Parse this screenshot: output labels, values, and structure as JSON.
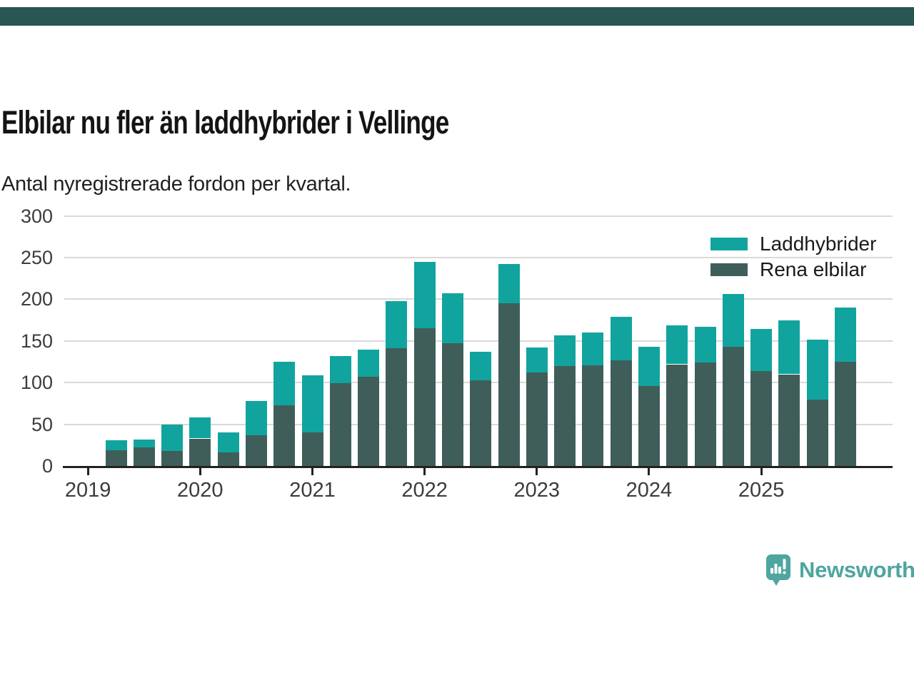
{
  "page": {
    "background": "#FFFFFF",
    "top_bar_color": "#275654"
  },
  "header": {
    "title": "Elbilar nu fler än laddhybrider i Vellinge",
    "subtitle": "Antal nyregistrerade fordon per kvartal."
  },
  "chart_data": {
    "type": "bar",
    "stacked": true,
    "categories": [
      "2019 Q2",
      "2019 Q3",
      "2019 Q4",
      "2020 Q1",
      "2020 Q2",
      "2020 Q3",
      "2020 Q4",
      "2021 Q1",
      "2021 Q2",
      "2021 Q3",
      "2021 Q4",
      "2022 Q1",
      "2022 Q2",
      "2022 Q3",
      "2022 Q4",
      "2023 Q1",
      "2023 Q2",
      "2023 Q3",
      "2023 Q4",
      "2024 Q1",
      "2024 Q2",
      "2024 Q3",
      "2024 Q4",
      "2025 Q1",
      "2025 Q2",
      "2025 Q3",
      "2025 Q4"
    ],
    "series": [
      {
        "name": "Laddhybrider",
        "color": "#11A49E",
        "values": [
          12,
          10,
          32,
          25,
          24,
          41,
          52,
          69,
          33,
          33,
          57,
          80,
          60,
          34,
          47,
          30,
          37,
          39,
          52,
          47,
          47,
          43,
          63,
          50,
          65,
          72,
          65
        ]
      },
      {
        "name": "Rena elbilar",
        "color": "#405E59",
        "values": [
          19,
          22,
          18,
          33,
          16,
          37,
          73,
          40,
          99,
          107,
          141,
          165,
          147,
          103,
          195,
          112,
          120,
          121,
          127,
          96,
          122,
          124,
          143,
          114,
          110,
          80,
          125
        ]
      }
    ],
    "ylabel": "",
    "xlabel": "",
    "ylim": [
      0,
      300
    ],
    "y_ticks": [
      0,
      50,
      100,
      150,
      200,
      250,
      300
    ],
    "x_tick_labels": [
      "2019",
      "2020",
      "2021",
      "2022",
      "2023",
      "2024",
      "2025"
    ],
    "grid": "horizontal",
    "grid_color": "#D9D9D9",
    "axis_color": "#222222",
    "tick_label_color": "#3C3C3C",
    "legend_position": "top-right"
  },
  "footer": {
    "brand": "Newsworthy",
    "brand_color": "#4FA5A0",
    "logo_icon": "bar-chart-speech-bubble-icon"
  }
}
